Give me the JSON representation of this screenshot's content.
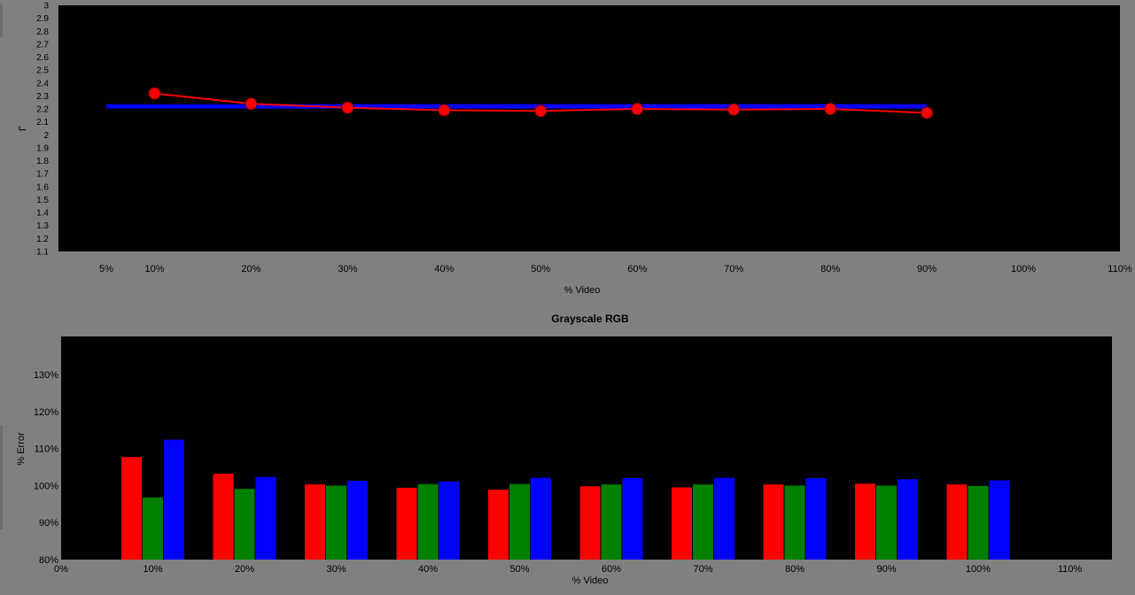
{
  "chart_data": [
    {
      "type": "line",
      "title": "",
      "xlabel": "% Video",
      "ylabel": "Γ",
      "xlim": [
        5,
        110
      ],
      "ylim": [
        1.1,
        3
      ],
      "x_ticks": [
        "5%",
        "10%",
        "20%",
        "30%",
        "40%",
        "50%",
        "60%",
        "70%",
        "80%",
        "90%",
        "100%",
        "110%"
      ],
      "x_tick_values": [
        5,
        10,
        20,
        30,
        40,
        50,
        60,
        70,
        80,
        90,
        100,
        110
      ],
      "y_ticks": [
        "1.1",
        "1.2",
        "1.3",
        "1.4",
        "1.5",
        "1.6",
        "1.7",
        "1.8",
        "1.9",
        "2",
        "2.1",
        "2.2",
        "2.3",
        "2.4",
        "2.5",
        "2.6",
        "2.7",
        "2.8",
        "2.9",
        "3"
      ],
      "y_tick_values": [
        1.1,
        1.2,
        1.3,
        1.4,
        1.5,
        1.6,
        1.7,
        1.8,
        1.9,
        2.0,
        2.1,
        2.2,
        2.3,
        2.4,
        2.5,
        2.6,
        2.7,
        2.8,
        2.9,
        3.0
      ],
      "grid": false,
      "series": [
        {
          "color": "#0000ff",
          "x": [
            5,
            90
          ],
          "y": [
            2.22,
            2.22
          ]
        },
        {
          "color": "#ff0000",
          "markers": true,
          "x": [
            10,
            20,
            30,
            40,
            50,
            60,
            70,
            80,
            90
          ],
          "y": [
            2.32,
            2.24,
            2.21,
            2.19,
            2.185,
            2.2,
            2.195,
            2.2,
            2.17
          ]
        }
      ]
    },
    {
      "type": "bar",
      "title": "Grayscale RGB",
      "xlabel": "% Video",
      "ylabel": "% Error",
      "xlim": [
        0,
        110
      ],
      "ylim": [
        80,
        140
      ],
      "x_ticks": [
        "0%",
        "10%",
        "20%",
        "30%",
        "40%",
        "50%",
        "60%",
        "70%",
        "80%",
        "90%",
        "100%",
        "110%"
      ],
      "x_tick_values": [
        0,
        10,
        20,
        30,
        40,
        50,
        60,
        70,
        80,
        90,
        100,
        110
      ],
      "y_ticks": [
        "80%",
        "90%",
        "100%",
        "110%",
        "120%",
        "130%"
      ],
      "y_tick_values": [
        80,
        90,
        100,
        110,
        120,
        130
      ],
      "grid": false,
      "categories": [
        10,
        20,
        30,
        40,
        50,
        60,
        70,
        80,
        90,
        100
      ],
      "series": [
        {
          "color": "#ff0000",
          "values": [
            107.7,
            103.2,
            100.3,
            99.4,
            98.9,
            99.8,
            99.5,
            100.3,
            100.5,
            100.3
          ]
        },
        {
          "color": "#008000",
          "values": [
            96.8,
            99.1,
            100.0,
            100.4,
            100.4,
            100.3,
            100.3,
            100.0,
            100.0,
            99.9
          ]
        },
        {
          "color": "#0000ff",
          "values": [
            112.4,
            102.3,
            101.3,
            101.1,
            102.1,
            102.0,
            102.1,
            102.0,
            101.7,
            101.4
          ]
        }
      ]
    }
  ]
}
